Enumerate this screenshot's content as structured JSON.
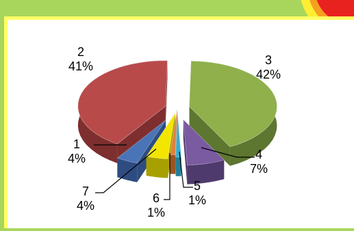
{
  "chart_data": {
    "type": "pie",
    "style": "exploded-3d",
    "categories": [
      "1",
      "2",
      "3",
      "4",
      "5",
      "6",
      "7"
    ],
    "values": [
      4,
      41,
      42,
      7,
      1,
      1,
      4
    ],
    "labels": [
      {
        "category": "1",
        "percent": "4%"
      },
      {
        "category": "2",
        "percent": "41%"
      },
      {
        "category": "3",
        "percent": "42%"
      },
      {
        "category": "4",
        "percent": "7%"
      },
      {
        "category": "5",
        "percent": "1%"
      },
      {
        "category": "6",
        "percent": "1%"
      },
      {
        "category": "7",
        "percent": "4%"
      }
    ],
    "colors": [
      "#4a74b8",
      "#b84a4a",
      "#8fb04b",
      "#7a5aa0",
      "#3aaecf",
      "#e0813a",
      "#f2e600"
    ],
    "side_colors": [
      "#2e4c80",
      "#7e2e2e",
      "#5d7630",
      "#4f3a6d",
      "#237e97",
      "#9c5422",
      "#a89f00"
    ],
    "title": "",
    "legend": "none"
  },
  "theme": {
    "frame_bg": "#a8d65c",
    "plot_bg": "#ffffff",
    "plot_edge": "#ffff66",
    "corner_red": "#e8231f",
    "corner_orange": "#f5a020",
    "corner_yellow": "#ffee33"
  }
}
